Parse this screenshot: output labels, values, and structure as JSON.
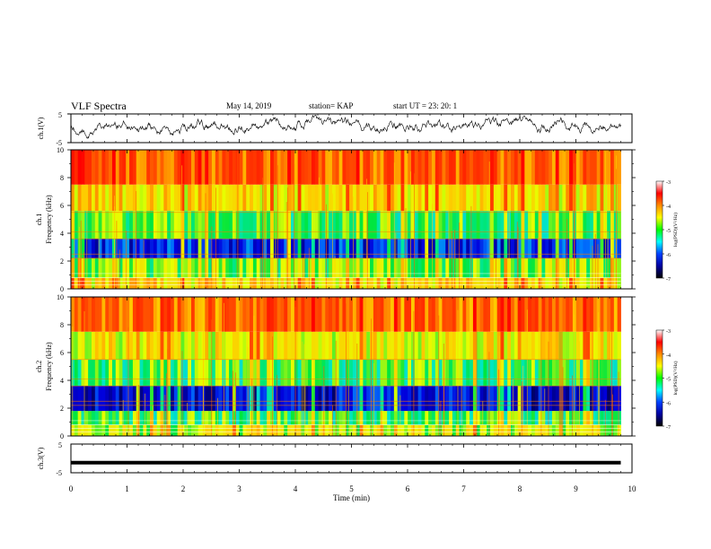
{
  "header": {
    "title": "VLF Spectra",
    "date": "May 14, 2019",
    "station": "station= KAP",
    "start": "start  UT  =   23: 20: 1"
  },
  "panels": {
    "ch1_waveform": {
      "ylabel": "ch.1(V)",
      "yticks": [
        "5",
        "-5"
      ]
    },
    "ch1_spectrogram": {
      "ylabel_line1": "ch.1",
      "ylabel_line2": "Frequency (kHz)",
      "yticks": [
        "0",
        "2",
        "4",
        "6",
        "8",
        "10"
      ]
    },
    "ch2_spectrogram": {
      "ylabel_line1": "ch.2",
      "ylabel_line2": "Frequency (kHz)",
      "yticks": [
        "0",
        "2",
        "4",
        "6",
        "8",
        "10"
      ]
    },
    "ch3_waveform": {
      "ylabel": "ch.3(V)",
      "yticks": [
        "5",
        "-5"
      ]
    }
  },
  "colorbar": {
    "label": "log(PSD)(V²/Hz)",
    "ticks": [
      "-3",
      "-4",
      "-5",
      "-6",
      "-7"
    ],
    "colors": [
      "#ffffff",
      "#ff0000",
      "#ff8c00",
      "#ffff00",
      "#00ff00",
      "#00ffff",
      "#0040ff",
      "#0000a0",
      "#000000"
    ]
  },
  "xaxis": {
    "label": "Time (min)",
    "ticks": [
      "0",
      "1",
      "2",
      "3",
      "4",
      "5",
      "6",
      "7",
      "8",
      "9",
      "10"
    ]
  },
  "chart_data": [
    {
      "type": "line",
      "name": "ch.1 waveform",
      "xlim": [
        0,
        10
      ],
      "ylim": [
        -5,
        5
      ],
      "note_values": "noisy broadband signal roughly between -3 and 5 V",
      "ylabel": "ch.1(V)"
    },
    {
      "type": "heatmap",
      "name": "ch.1 spectrogram",
      "xlabel": "",
      "ylabel": "Frequency (kHz)",
      "xlim": [
        0,
        10
      ],
      "ylim": [
        0,
        10
      ],
      "zlim": [
        -7,
        -3
      ],
      "bands": [
        {
          "freq_khz": [
            0,
            0.8
          ],
          "log_psd": -4.5
        },
        {
          "freq_khz": [
            0.8,
            2.2
          ],
          "log_psd": -5.0
        },
        {
          "freq_khz": [
            2.2,
            3.6
          ],
          "log_psd": -6.3
        },
        {
          "freq_khz": [
            3.6,
            5.6
          ],
          "log_psd": -5.2
        },
        {
          "freq_khz": [
            5.6,
            7.5
          ],
          "log_psd": -4.5
        },
        {
          "freq_khz": [
            7.5,
            10
          ],
          "log_psd": -3.8
        }
      ],
      "data_end_min": 9.8
    },
    {
      "type": "heatmap",
      "name": "ch.2 spectrogram",
      "xlabel": "",
      "ylabel": "Frequency (kHz)",
      "xlim": [
        0,
        10
      ],
      "ylim": [
        0,
        10
      ],
      "zlim": [
        -7,
        -3
      ],
      "bands": [
        {
          "freq_khz": [
            0,
            0.8
          ],
          "log_psd": -4.8
        },
        {
          "freq_khz": [
            0.8,
            1.8
          ],
          "log_psd": -5.2
        },
        {
          "freq_khz": [
            1.8,
            3.6
          ],
          "log_psd": -6.5
        },
        {
          "freq_khz": [
            3.6,
            5.5
          ],
          "log_psd": -5.2
        },
        {
          "freq_khz": [
            5.5,
            7.5
          ],
          "log_psd": -4.6
        },
        {
          "freq_khz": [
            7.5,
            10
          ],
          "log_psd": -3.9
        }
      ],
      "data_end_min": 9.8
    },
    {
      "type": "line",
      "name": "ch.3 waveform",
      "xlim": [
        0,
        10
      ],
      "ylim": [
        -5,
        5
      ],
      "note_values": "thick flat line near -1.5 V",
      "ylabel": "ch.3(V)",
      "xlabel": "Time (min)"
    }
  ]
}
